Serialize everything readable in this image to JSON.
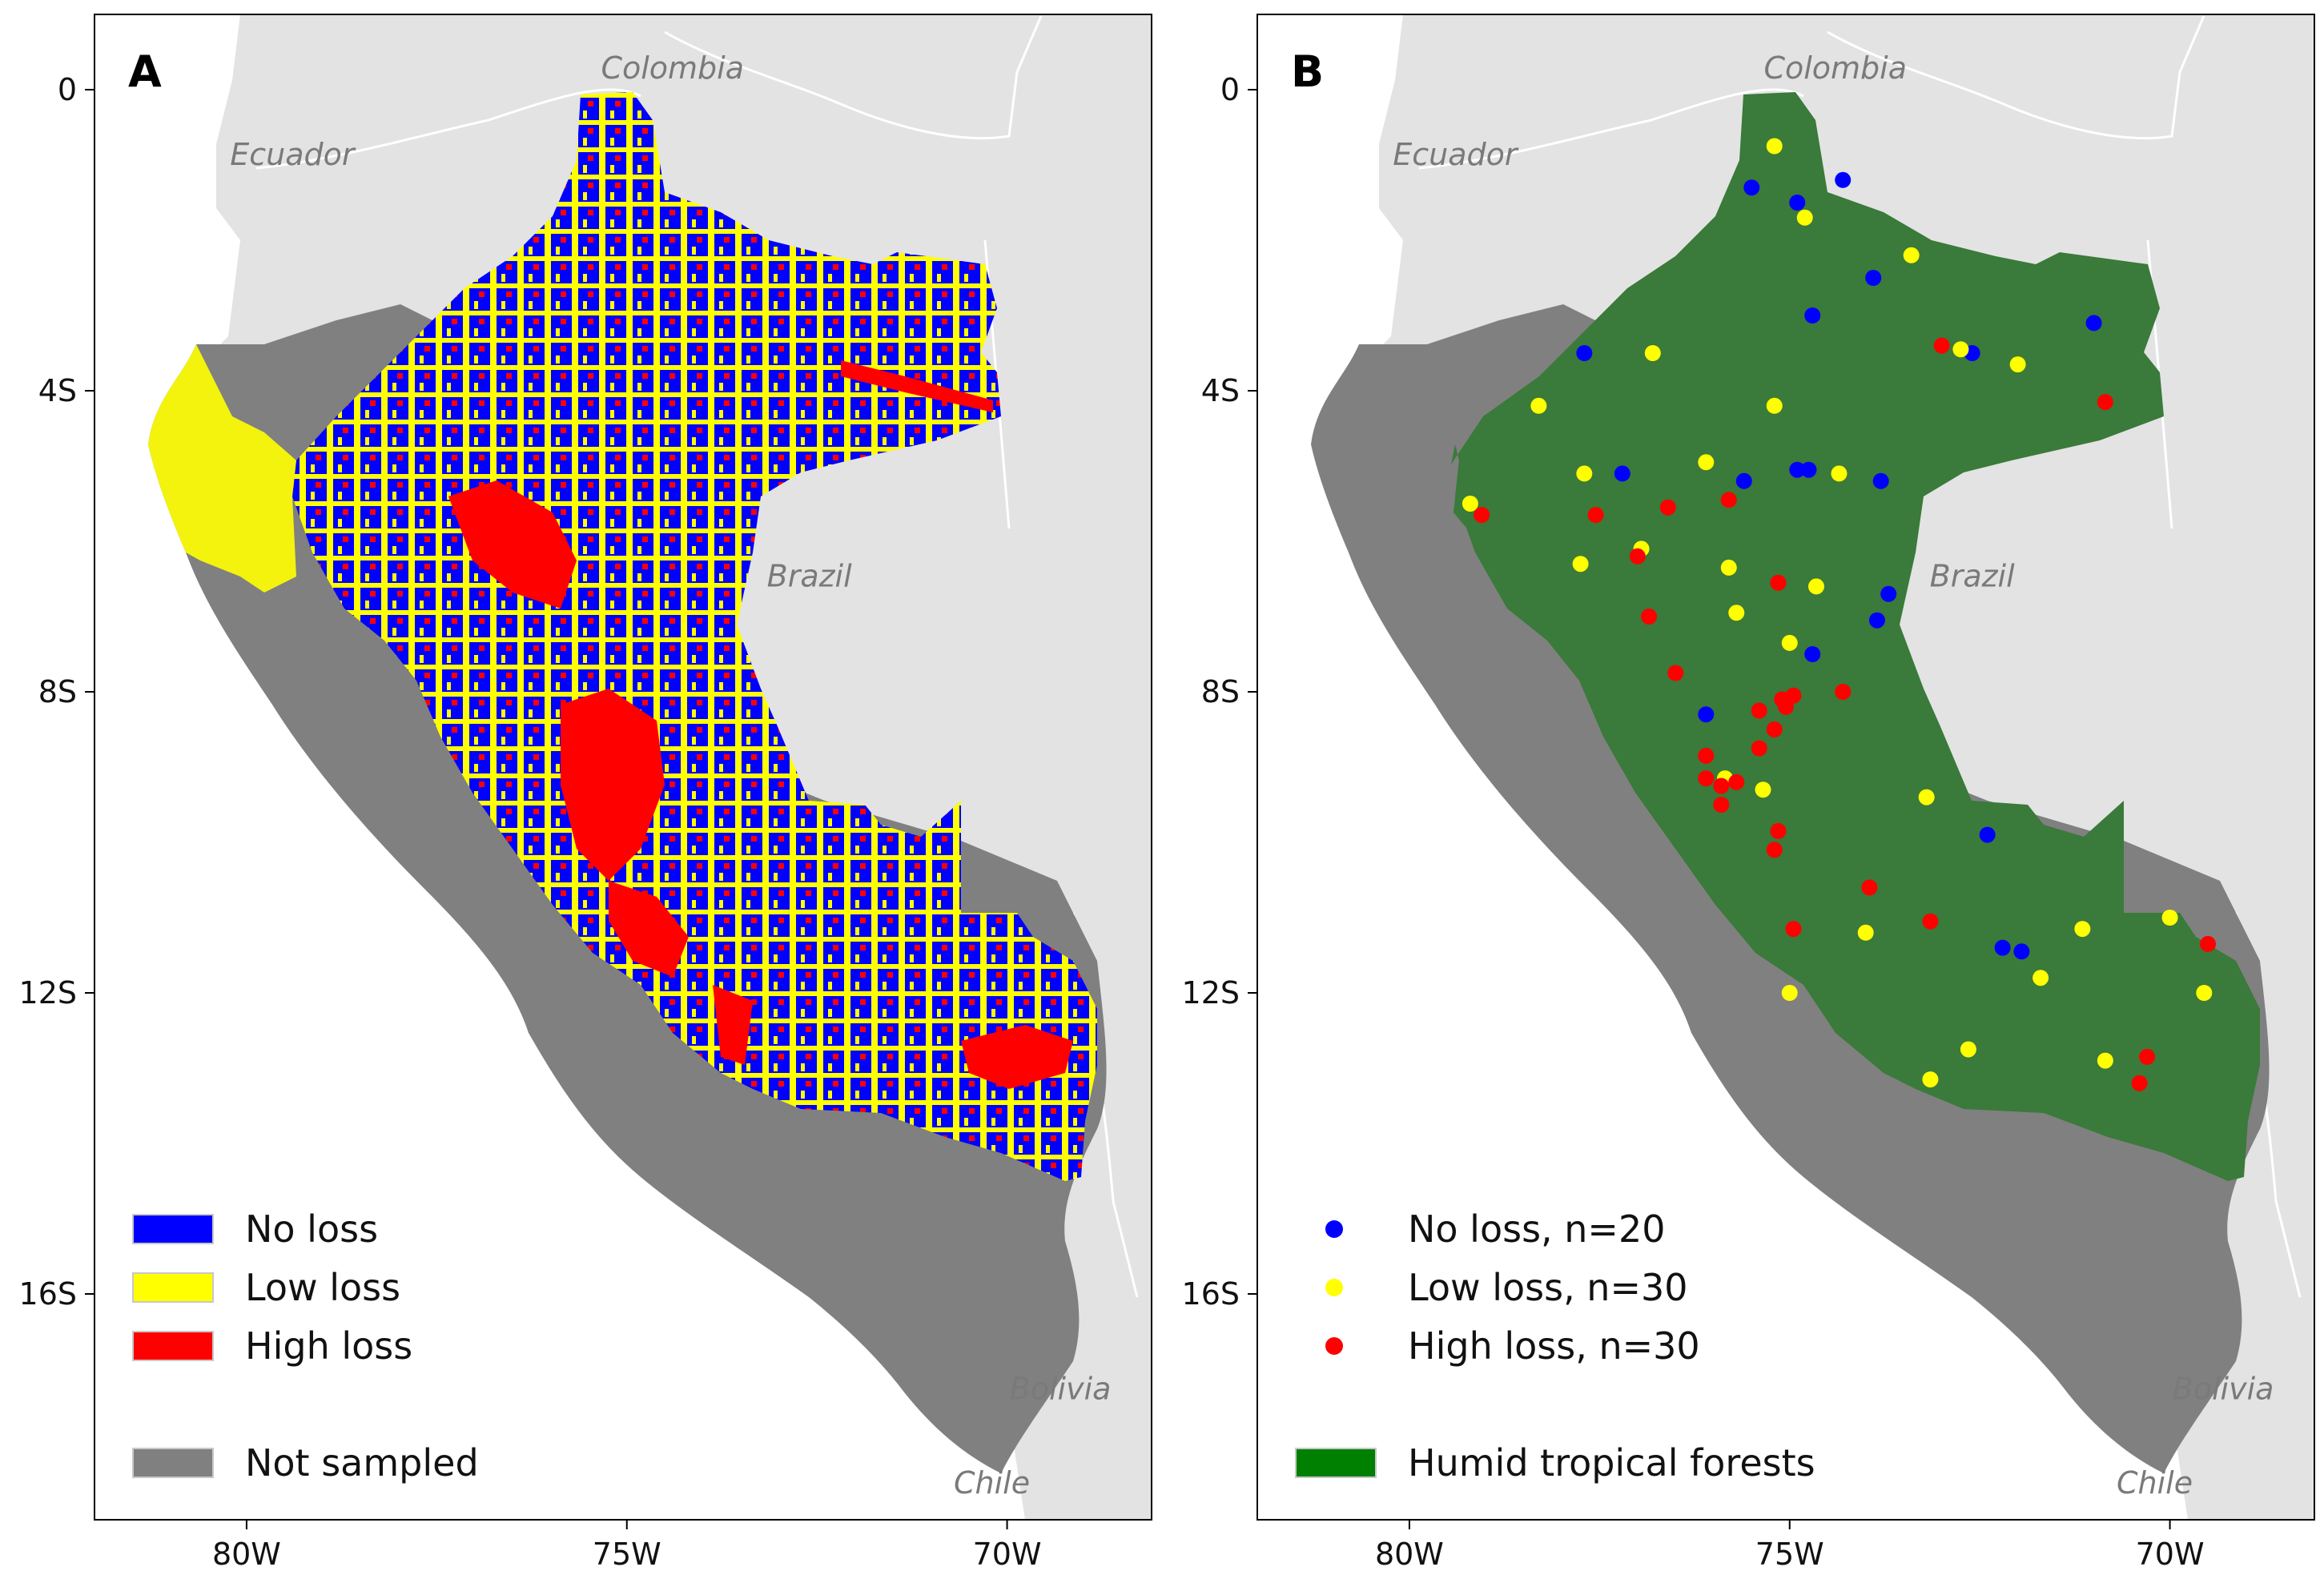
{
  "figure": {
    "panels": [
      {
        "id": "A",
        "letter": "A",
        "country_labels": [
          {
            "key": "colombia",
            "text": "Colombia"
          },
          {
            "key": "ecuador",
            "text": "Ecuador"
          },
          {
            "key": "brazil",
            "text": "Brazil"
          },
          {
            "key": "bolivia",
            "text": "Bolivia"
          },
          {
            "key": "chile",
            "text": "Chile"
          }
        ],
        "legend": [
          {
            "key": "no_loss",
            "label": "No loss",
            "color": "#0000ff",
            "symbol": "patch"
          },
          {
            "key": "low_loss",
            "label": "Low loss",
            "color": "#ffff00",
            "symbol": "patch"
          },
          {
            "key": "high_loss",
            "label": "High loss",
            "color": "#ff0000",
            "symbol": "patch"
          },
          {
            "key": "not_sampled",
            "label": "Not sampled",
            "color": "#808080",
            "symbol": "patch"
          }
        ]
      },
      {
        "id": "B",
        "letter": "B",
        "country_labels": [
          {
            "key": "colombia",
            "text": "Colombia"
          },
          {
            "key": "ecuador",
            "text": "Ecuador"
          },
          {
            "key": "brazil",
            "text": "Brazil"
          },
          {
            "key": "bolivia",
            "text": "Bolivia"
          },
          {
            "key": "chile",
            "text": "Chile"
          }
        ],
        "legend": [
          {
            "key": "no_loss",
            "label": "No loss, n=20",
            "color": "#0000ff",
            "symbol": "dot"
          },
          {
            "key": "low_loss",
            "label": "Low loss, n=30",
            "color": "#ffff00",
            "symbol": "dot"
          },
          {
            "key": "high_loss",
            "label": "High loss, n=30",
            "color": "#ff0000",
            "symbol": "dot"
          },
          {
            "key": "forest",
            "label": "Humid tropical forests",
            "color": "#008000",
            "symbol": "patch"
          }
        ]
      }
    ],
    "x_ticks": [
      {
        "lon": -80,
        "label": "80W"
      },
      {
        "lon": -75,
        "label": "75W"
      },
      {
        "lon": -70,
        "label": "70W"
      }
    ],
    "y_ticks": [
      {
        "lat": 0,
        "label": "0"
      },
      {
        "lat": -4,
        "label": "4S"
      },
      {
        "lat": -8,
        "label": "8S"
      },
      {
        "lat": -12,
        "label": "12S"
      },
      {
        "lat": -16,
        "label": "16S"
      }
    ],
    "colors": {
      "ocean": "#ffffff",
      "neighbor_land": "#e3e3e3",
      "border": "#ffffff",
      "not_sampled": "#808080",
      "no_loss": "#0000ff",
      "low_loss": "#ffff00",
      "high_loss": "#ff0000",
      "forest": "#3a7a3a"
    },
    "sample_points": {
      "no_loss": [
        [
          -75.5,
          -1.3
        ],
        [
          -74.9,
          -1.5
        ],
        [
          -74.3,
          -1.2
        ],
        [
          -73.9,
          -2.5
        ],
        [
          -74.7,
          -3.0
        ],
        [
          -77.7,
          -3.5
        ],
        [
          -72.6,
          -3.5
        ],
        [
          -71.0,
          -3.1
        ],
        [
          -77.2,
          -5.1
        ],
        [
          -75.6,
          -5.2
        ],
        [
          -74.9,
          -5.05
        ],
        [
          -74.75,
          -5.05
        ],
        [
          -73.8,
          -5.2
        ],
        [
          -73.7,
          -6.7
        ],
        [
          -73.85,
          -7.05
        ],
        [
          -74.7,
          -7.5
        ],
        [
          -76.1,
          -8.3
        ],
        [
          -72.4,
          -9.9
        ],
        [
          -72.2,
          -11.4
        ],
        [
          -71.95,
          -11.45
        ]
      ],
      "low_loss": [
        [
          -75.2,
          -0.75
        ],
        [
          -74.8,
          -1.7
        ],
        [
          -73.4,
          -2.2
        ],
        [
          -76.8,
          -3.5
        ],
        [
          -72.75,
          -3.45
        ],
        [
          -72.0,
          -3.65
        ],
        [
          -78.3,
          -4.2
        ],
        [
          -75.2,
          -4.2
        ],
        [
          -76.1,
          -4.95
        ],
        [
          -77.7,
          -5.1
        ],
        [
          -74.35,
          -5.1
        ],
        [
          -79.2,
          -5.5
        ],
        [
          -76.95,
          -6.1
        ],
        [
          -77.75,
          -6.3
        ],
        [
          -75.8,
          -6.35
        ],
        [
          -74.65,
          -6.6
        ],
        [
          -75.7,
          -6.95
        ],
        [
          -75.0,
          -7.35
        ],
        [
          -75.85,
          -9.15
        ],
        [
          -75.35,
          -9.3
        ],
        [
          -73.2,
          -9.4
        ],
        [
          -74.0,
          -11.2
        ],
        [
          -71.15,
          -11.15
        ],
        [
          -70.0,
          -11.0
        ],
        [
          -71.7,
          -11.8
        ],
        [
          -75.0,
          -12.0
        ],
        [
          -69.55,
          -12.0
        ],
        [
          -73.15,
          -13.15
        ],
        [
          -72.65,
          -12.75
        ],
        [
          -70.85,
          -12.9
        ]
      ],
      "high_loss": [
        [
          -79.05,
          -5.65
        ],
        [
          -77.55,
          -5.65
        ],
        [
          -76.6,
          -5.55
        ],
        [
          -75.8,
          -5.45
        ],
        [
          -77.0,
          -6.2
        ],
        [
          -75.15,
          -6.55
        ],
        [
          -76.85,
          -7.0
        ],
        [
          -76.5,
          -7.75
        ],
        [
          -74.3,
          -8.0
        ],
        [
          -74.95,
          -8.05
        ],
        [
          -75.1,
          -8.1
        ],
        [
          -75.4,
          -8.25
        ],
        [
          -75.2,
          -8.5
        ],
        [
          -75.4,
          -8.75
        ],
        [
          -76.1,
          -8.85
        ],
        [
          -76.1,
          -9.15
        ],
        [
          -75.9,
          -9.25
        ],
        [
          -75.7,
          -9.2
        ],
        [
          -75.9,
          -9.5
        ],
        [
          -75.15,
          -9.85
        ],
        [
          -75.2,
          -10.1
        ],
        [
          -73.95,
          -10.6
        ],
        [
          -73.15,
          -11.05
        ],
        [
          -74.95,
          -11.15
        ],
        [
          -73.0,
          -3.4
        ],
        [
          -70.85,
          -4.15
        ],
        [
          -69.5,
          -11.35
        ],
        [
          -70.3,
          -12.85
        ],
        [
          -70.4,
          -13.2
        ],
        [
          -75.05,
          -8.2
        ]
      ]
    }
  }
}
